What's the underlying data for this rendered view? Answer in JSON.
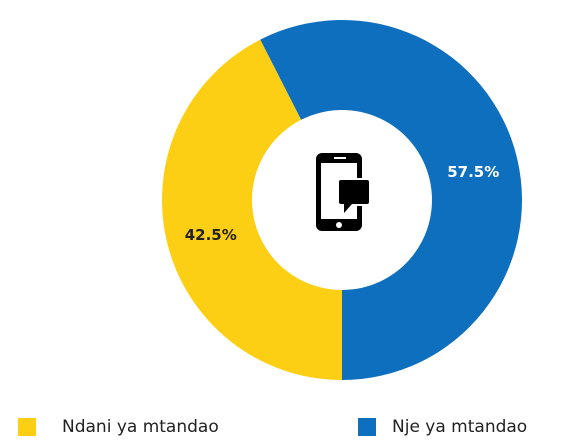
{
  "chart_data": {
    "type": "donut",
    "categories": [
      "Ndani ya mtandao",
      "Nje ya mtandao"
    ],
    "values": [
      42.5,
      57.5
    ],
    "value_labels": [
      "42.5%",
      "57.5%"
    ],
    "colors": [
      "#fccf14",
      "#0f6fbf"
    ]
  }
}
